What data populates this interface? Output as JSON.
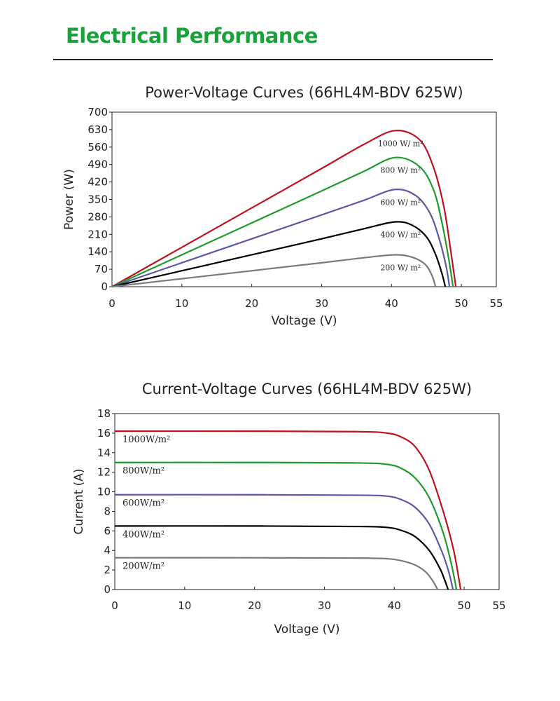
{
  "header": {
    "title": "Electrical Performance"
  },
  "colors": {
    "title_green": "#1aa23a",
    "s1000": "#c0121e",
    "s800": "#1f9a2c",
    "s600": "#5b58a6",
    "s400": "#000000",
    "s200": "#7a7a7a"
  },
  "chart_data": [
    {
      "type": "line",
      "title": "Power-Voltage Curves (66HL4M-BDV 625W)",
      "xlabel": "Voltage (V)",
      "ylabel": "Power (W)",
      "xlim": [
        0,
        55
      ],
      "ylim": [
        0,
        700
      ],
      "xticks": [
        "0",
        "10",
        "20",
        "30",
        "40",
        "50",
        "55"
      ],
      "yticks": [
        "0",
        "70",
        "140",
        "210",
        "280",
        "350",
        "420",
        "490",
        "560",
        "630",
        "700"
      ],
      "grid": false,
      "series": [
        {
          "name": "1000 W/ m²",
          "color": "#c0121e",
          "x": [
            0,
            10,
            20,
            30,
            36,
            40.5,
            44,
            46,
            47.5,
            48.5,
            49.2
          ],
          "y": [
            0,
            158,
            316,
            474,
            570,
            626,
            590,
            480,
            320,
            140,
            0
          ]
        },
        {
          "name": "800 W/ m²",
          "color": "#1f9a2c",
          "x": [
            0,
            10,
            20,
            30,
            36,
            40.5,
            44,
            46,
            47.2,
            48.2,
            48.8
          ],
          "y": [
            0,
            128,
            256,
            384,
            462,
            518,
            482,
            390,
            260,
            110,
            0
          ]
        },
        {
          "name": "600 W/ m²",
          "color": "#5b58a6",
          "x": [
            0,
            10,
            20,
            30,
            36,
            40.5,
            43.5,
            45.5,
            46.8,
            47.8,
            48.3
          ],
          "y": [
            0,
            96,
            192,
            288,
            346,
            390,
            365,
            295,
            195,
            85,
            0
          ]
        },
        {
          "name": "400 W/ m²",
          "color": "#000000",
          "x": [
            0,
            10,
            20,
            30,
            36,
            40.5,
            43,
            45,
            46.3,
            47.2,
            47.7
          ],
          "y": [
            0,
            64,
            128,
            192,
            232,
            260,
            246,
            200,
            130,
            55,
            0
          ]
        },
        {
          "name": "200 W/ m²",
          "color": "#7a7a7a",
          "x": [
            0,
            10,
            20,
            30,
            36,
            40.5,
            43,
            44.8,
            45.8,
            46.3
          ],
          "y": [
            0,
            32,
            64,
            96,
            116,
            128,
            118,
            90,
            45,
            0
          ]
        }
      ]
    },
    {
      "type": "line",
      "title": "Current-Voltage Curves (66HL4M-BDV 625W)",
      "xlabel": "Voltage (V)",
      "ylabel": "Current (A)",
      "xlim": [
        0,
        55
      ],
      "ylim": [
        0,
        18
      ],
      "xticks": [
        "0",
        "10",
        "20",
        "30",
        "40",
        "50",
        "55"
      ],
      "yticks": [
        "0",
        "2",
        "4",
        "6",
        "8",
        "10",
        "12",
        "14",
        "16",
        "18"
      ],
      "grid": false,
      "series": [
        {
          "name": "1000W/m²",
          "color": "#c0121e",
          "x": [
            0,
            20,
            35,
            39,
            41,
            43,
            45,
            47,
            48.5,
            49.5
          ],
          "y": [
            16.2,
            16.2,
            16.15,
            16.0,
            15.6,
            14.6,
            12.2,
            8.0,
            4.0,
            0
          ]
        },
        {
          "name": "800W/m²",
          "color": "#1f9a2c",
          "x": [
            0,
            20,
            35,
            39,
            41,
            43,
            45,
            47,
            48.2,
            48.9
          ],
          "y": [
            13.0,
            13.0,
            12.95,
            12.8,
            12.4,
            11.4,
            9.4,
            5.8,
            2.5,
            0
          ]
        },
        {
          "name": "600W/m²",
          "color": "#5b58a6",
          "x": [
            0,
            20,
            35,
            39,
            41,
            43,
            45,
            46.8,
            47.8,
            48.4
          ],
          "y": [
            9.7,
            9.7,
            9.65,
            9.55,
            9.2,
            8.4,
            6.7,
            3.9,
            1.8,
            0
          ]
        },
        {
          "name": "400W/m²",
          "color": "#000000",
          "x": [
            0,
            20,
            35,
            39,
            41,
            43,
            45,
            46.5,
            47.2,
            47.7
          ],
          "y": [
            6.5,
            6.5,
            6.45,
            6.35,
            6.05,
            5.4,
            4.0,
            2.2,
            1.0,
            0
          ]
        },
        {
          "name": "200W/m²",
          "color": "#7a7a7a",
          "x": [
            0,
            20,
            35,
            39,
            41,
            43,
            44.5,
            45.5,
            46.2
          ],
          "y": [
            3.25,
            3.25,
            3.22,
            3.15,
            2.95,
            2.5,
            1.8,
            0.9,
            0
          ]
        }
      ]
    }
  ]
}
